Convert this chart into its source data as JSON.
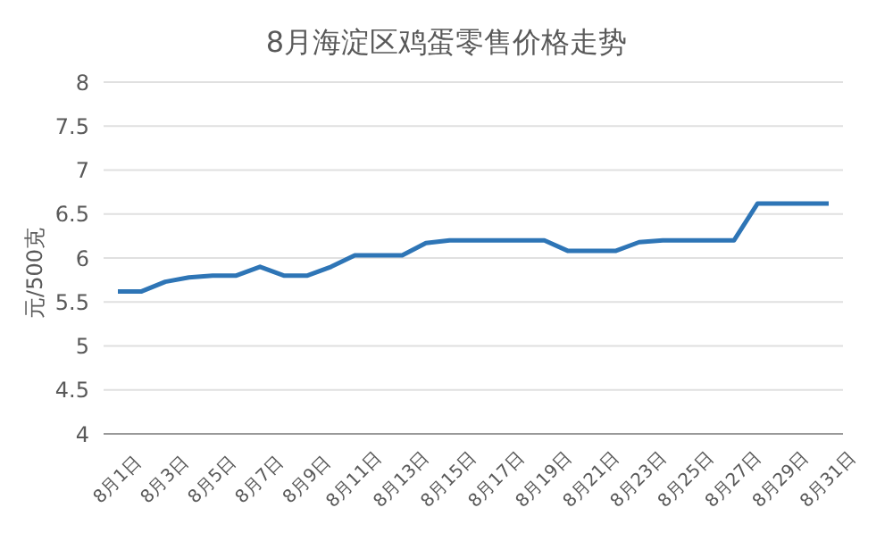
{
  "chart_data": {
    "type": "line",
    "title": "8月海淀区鸡蛋零售价格走势",
    "ylabel": "元/500克",
    "categories": [
      "8月1日",
      null,
      "8月3日",
      null,
      "8月5日",
      null,
      "8月7日",
      null,
      "8月9日",
      null,
      "8月11日",
      null,
      "8月13日",
      null,
      "8月15日",
      null,
      "8月17日",
      null,
      "8月19日",
      null,
      "8月21日",
      null,
      "8月23日",
      null,
      "8月25日",
      null,
      "8月27日",
      null,
      "8月29日",
      null,
      "8月31日"
    ],
    "series": [
      {
        "color": "#2e75b6",
        "values": [
          5.62,
          5.62,
          5.73,
          5.78,
          5.8,
          5.8,
          5.9,
          5.8,
          5.8,
          5.9,
          6.03,
          6.03,
          6.03,
          6.17,
          6.2,
          6.2,
          6.2,
          6.2,
          6.2,
          6.08,
          6.08,
          6.08,
          6.18,
          6.2,
          6.2,
          6.2,
          6.2,
          6.62,
          6.62,
          6.62,
          6.62
        ]
      }
    ],
    "ylim": [
      4,
      8
    ],
    "yticks": [
      4,
      4.5,
      5,
      5.5,
      6,
      6.5,
      7,
      7.5,
      8
    ],
    "grid": "y",
    "legend": false,
    "marker": "none",
    "line_style": "solid"
  }
}
